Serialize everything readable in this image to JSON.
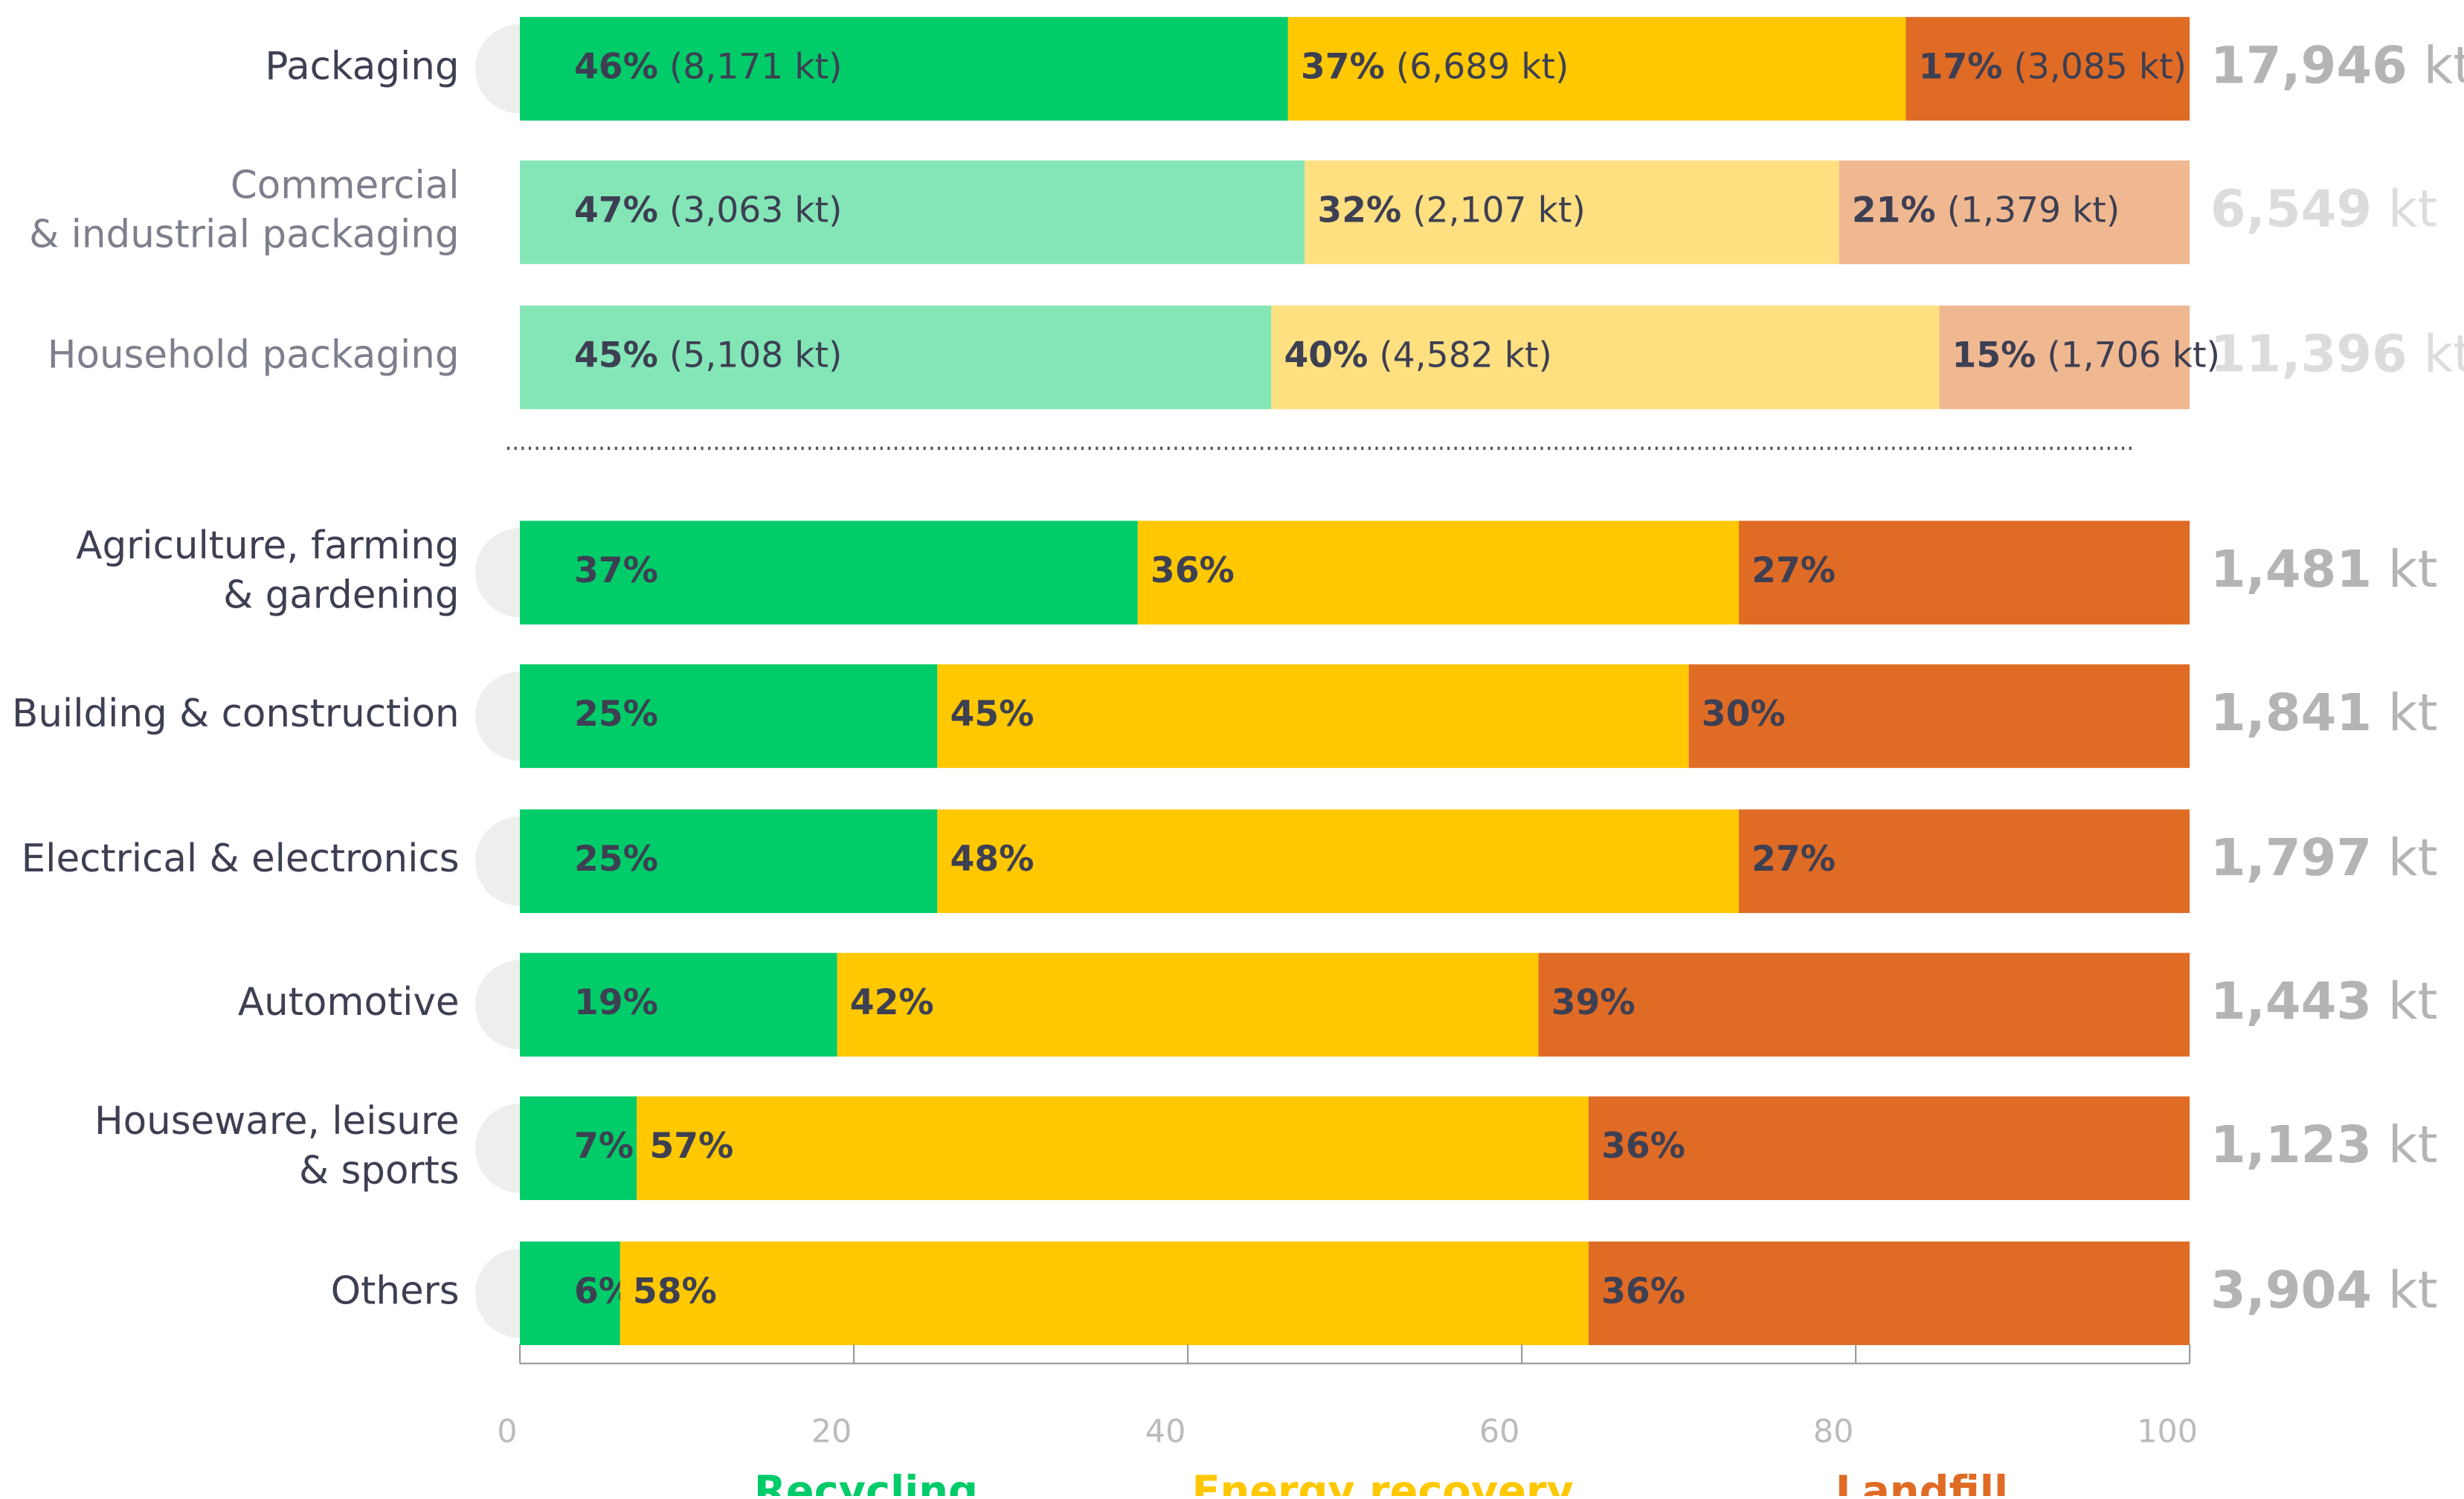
{
  "chart_data": {
    "type": "stacked_bar_horizontal",
    "categories": [
      "Packaging",
      "Commercial\n& industrial packaging",
      "Household packaging",
      "Agriculture, farming\n& gardening",
      "Building & construction",
      "Electrical & electronics",
      "Automotive",
      "Houseware, leisure\n& sports",
      "Others"
    ],
    "series": [
      {
        "name": "Recycling",
        "color": "#00cc6a",
        "colors": [
          "#00cc6a",
          "#84e6b7",
          "#84e6b7",
          "#00cc6a",
          "#00cc6a",
          "#00cc6a",
          "#00cc6a",
          "#00cc6a",
          "#00cc6a"
        ],
        "values": [
          46,
          47,
          45,
          37,
          25,
          25,
          19,
          7,
          6
        ],
        "value_labels": [
          "46% (8,171 kt)",
          "47% (3,063 kt)",
          "45% (5,108 kt)",
          "37%",
          "25%",
          "25%",
          "19%",
          "7%",
          "6%"
        ]
      },
      {
        "name": "Energy recovery",
        "color": "#ffc800",
        "colors": [
          "#ffc800",
          "#ffe081",
          "#ffe081",
          "#ffc800",
          "#ffc800",
          "#ffc800",
          "#ffc800",
          "#ffc800",
          "#ffc800"
        ],
        "values": [
          37,
          32,
          40,
          36,
          45,
          48,
          42,
          57,
          58
        ],
        "value_labels": [
          "37% (6,689 kt)",
          "32% (2,107 kt)",
          "40% (4,582 kt)",
          "36%",
          "45%",
          "48%",
          "42%",
          "57%",
          "58%"
        ]
      },
      {
        "name": "Landfill",
        "color": "#e06b25",
        "colors": [
          "#e06b25",
          "#f0b891",
          "#f0b891",
          "#e06b25",
          "#e06b25",
          "#e06b25",
          "#e06b25",
          "#e06b25",
          "#e06b25"
        ],
        "values": [
          17,
          21,
          15,
          27,
          30,
          27,
          39,
          36,
          36
        ],
        "value_labels": [
          "17% (3,085 kt)",
          "21% (1,379 kt)",
          "15% (1,706 kt)",
          "27%",
          "30%",
          "27%",
          "39%",
          "36%",
          "36%"
        ]
      }
    ],
    "totals": [
      "17,946 kt",
      "6,549 kt",
      "11,396 kt",
      "1,481 kt",
      "1,841 kt",
      "1,797 kt",
      "1,443 kt",
      "1,123 kt",
      "3,904 kt"
    ],
    "xlim": [
      0,
      100
    ],
    "xticks": [
      0,
      20,
      40,
      60,
      80,
      100
    ],
    "legend": "bottom"
  }
}
